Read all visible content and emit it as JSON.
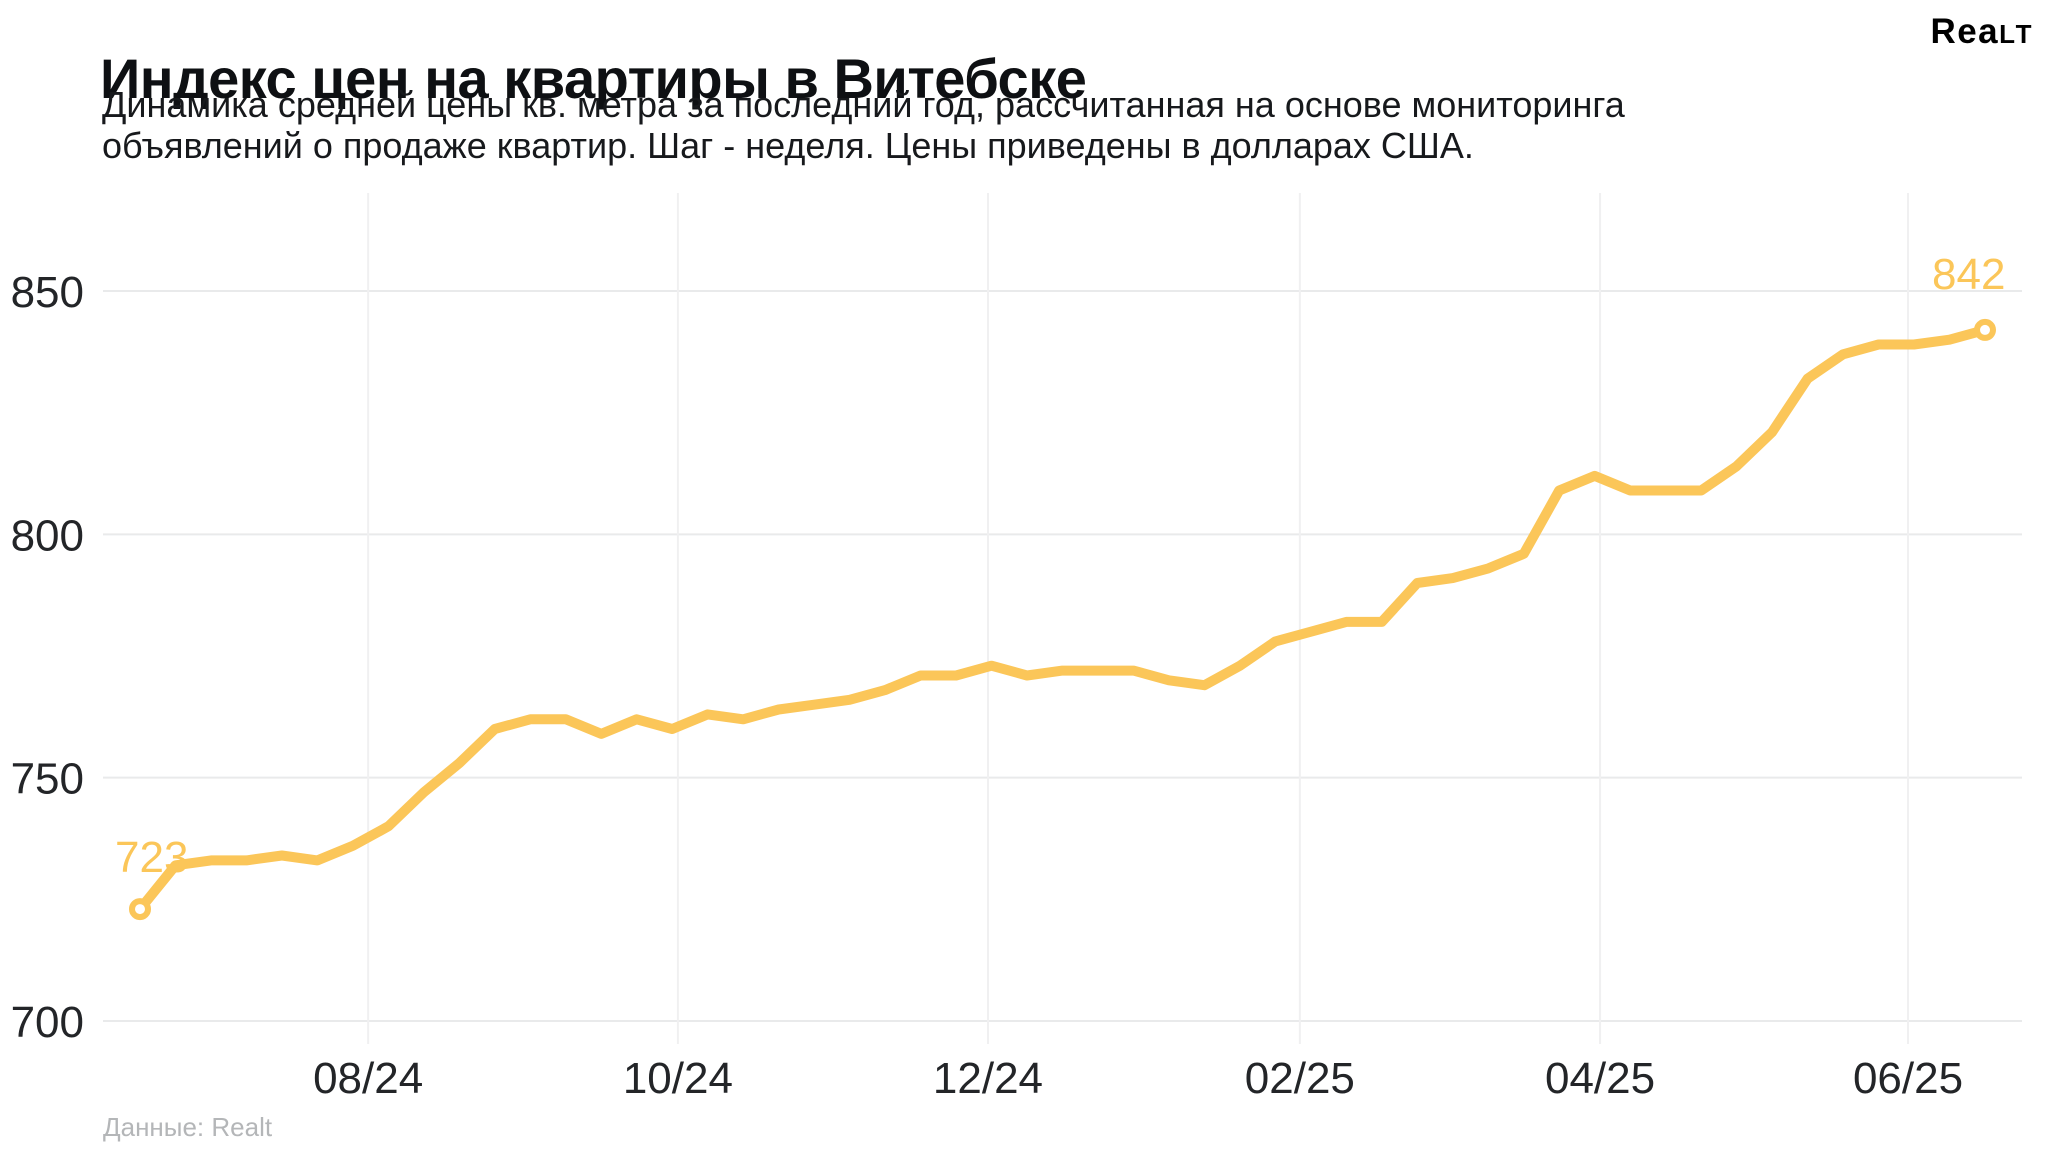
{
  "header": {
    "title": "Индекс цен на квартиры в Витебске",
    "subtitle_lines": [
      "Динамика средней цены кв. метра за последний год, рассчитанная на основе мониторинга",
      "объявлений о продаже квартир. Шаг - неделя. Цены приведены в долларах США."
    ],
    "logo_main": "Rea",
    "logo_caps": "lt"
  },
  "footer": {
    "source": "Данные: Realt"
  },
  "chart_data": {
    "type": "line",
    "title": "Индекс цен на квартиры в Витебске",
    "step": "неделя",
    "currency": "доллары США",
    "values": [
      723,
      732,
      733,
      733,
      734,
      733,
      736,
      740,
      747,
      753,
      760,
      762,
      762,
      759,
      762,
      760,
      763,
      762,
      764,
      765,
      766,
      768,
      771,
      771,
      773,
      771,
      772,
      772,
      772,
      770,
      769,
      773,
      778,
      780,
      782,
      782,
      790,
      791,
      793,
      796,
      809,
      812,
      809,
      809,
      809,
      814,
      821,
      832,
      837,
      839,
      839,
      840,
      842
    ],
    "start_label": "723",
    "end_label": "842",
    "y_ticks": [
      850,
      800,
      750,
      700
    ],
    "x_ticks": [
      {
        "label": "08/24",
        "week": 6.43
      },
      {
        "label": "10/24",
        "week": 15.16
      },
      {
        "label": "12/24",
        "week": 23.9
      },
      {
        "label": "02/25",
        "week": 32.69
      },
      {
        "label": "04/25",
        "week": 41.15
      },
      {
        "label": "06/25",
        "week": 49.83
      }
    ],
    "ylim": [
      700,
      850
    ],
    "grid": true,
    "legend_position": "none",
    "colors": {
      "line": "#FBC659",
      "point_label": "#FBC659",
      "grid_h": "#e9eaeb",
      "grid_v": "#f0f0f1",
      "tick_text": "#232528"
    }
  }
}
